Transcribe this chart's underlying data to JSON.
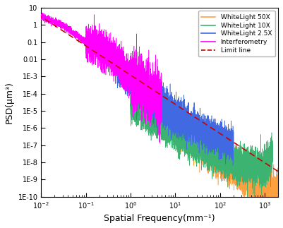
{
  "xlabel": "Spatial Frequency(mm⁻¹)",
  "ylabel": "PSD(μm³)",
  "xlim": [
    0.01,
    2000
  ],
  "ylim": [
    1e-10,
    10
  ],
  "legend_entries": [
    "WhiteLight 50X",
    "WhiteLight 10X",
    "WhiteLight 2.5X",
    "Interferometry",
    "Limit line"
  ],
  "line_colors": [
    "#FFA040",
    "#3CB371",
    "#4169E1",
    "#FF00FF",
    "#CC0000"
  ],
  "yticks": [
    1e-10,
    1e-09,
    1e-08,
    1e-07,
    1e-06,
    1e-05,
    0.0001,
    0.001,
    0.01,
    0.1,
    1,
    10
  ],
  "ylabels": [
    "1E-10",
    "1E-9",
    "1E-8",
    "1E-7",
    "1E-6",
    "1E-5",
    "1E-4",
    "1E-3",
    "0.01",
    "0.1",
    "1",
    "10"
  ]
}
